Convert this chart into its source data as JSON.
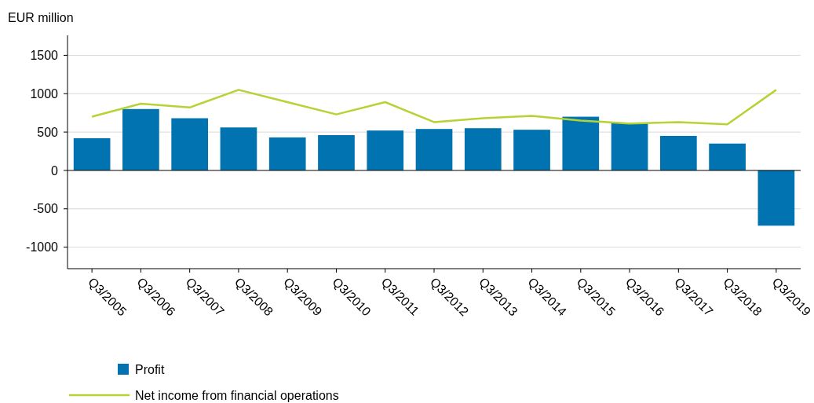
{
  "chart_data": {
    "type": "bar",
    "ylabel": "EUR million",
    "categories": [
      "Q3/2005",
      "Q3/2006",
      "Q3/2007",
      "Q3/2008",
      "Q3/2009",
      "Q3/2010",
      "Q3/2011",
      "Q3/2012",
      "Q3/2013",
      "Q3/2014",
      "Q3/2015",
      "Q3/2016",
      "Q3/2017",
      "Q3/2018",
      "Q3/2019"
    ],
    "series": [
      {
        "name": "Profit",
        "color": "#0073b0",
        "values": [
          420,
          800,
          680,
          560,
          430,
          460,
          520,
          540,
          550,
          530,
          700,
          620,
          450,
          350,
          -720
        ]
      },
      {
        "name": "Net income from financial operations",
        "type": "line",
        "color": "#b5d334",
        "values": [
          700,
          870,
          820,
          1050,
          890,
          730,
          890,
          630,
          680,
          710,
          650,
          610,
          630,
          600,
          1050
        ]
      }
    ],
    "ylim": [
      -1280,
      1760
    ],
    "yticks": [
      -1000,
      -500,
      0,
      500,
      1000,
      1500
    ],
    "grid": "y",
    "legend": "bottom",
    "marker": "none",
    "line_style": "solid"
  }
}
